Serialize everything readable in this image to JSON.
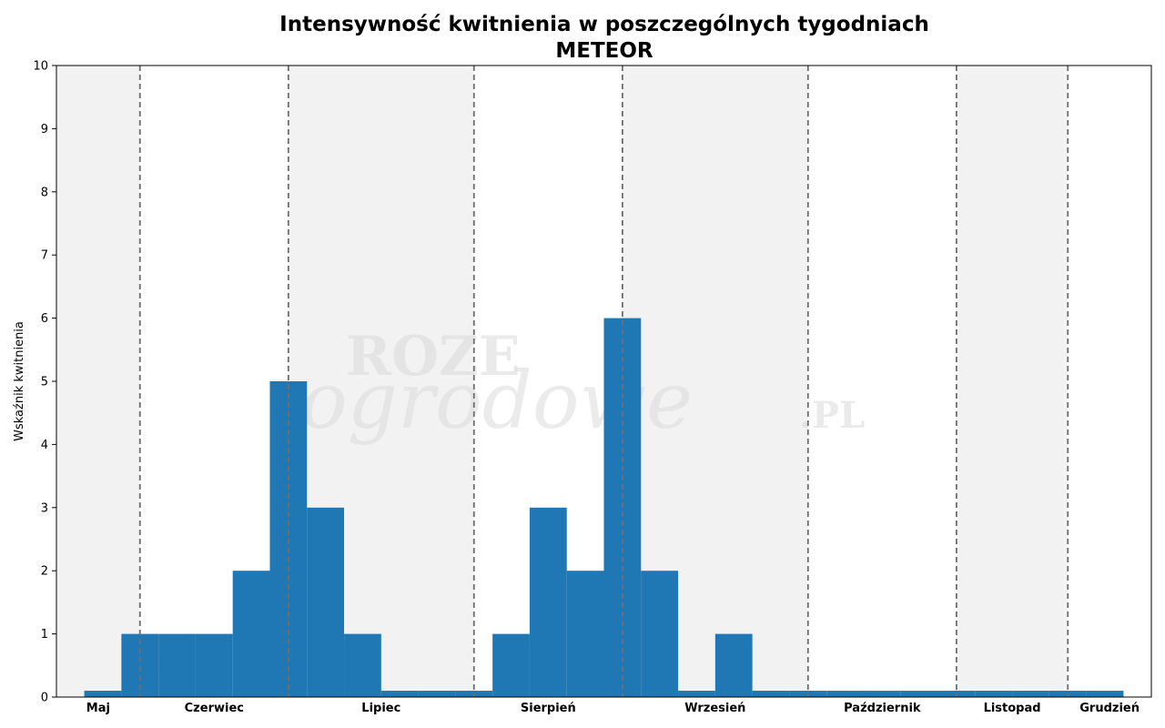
{
  "chart_data": {
    "type": "bar",
    "title": "Intensywność kwitnienia w poszczególnych tygodniach",
    "subtitle": "METEOR",
    "xlabel": "",
    "ylabel": "Wskaźnik kwitnienia",
    "ylim": [
      0,
      10
    ],
    "yticks": [
      "0",
      "1",
      "2",
      "3",
      "4",
      "5",
      "6",
      "7",
      "8",
      "9",
      "10"
    ],
    "xlim": [
      0,
      29.5
    ],
    "bar_width": 1,
    "bars": [
      {
        "x": 1.25,
        "value": 0.1
      },
      {
        "x": 2.25,
        "value": 1
      },
      {
        "x": 3.25,
        "value": 1
      },
      {
        "x": 4.25,
        "value": 1
      },
      {
        "x": 5.25,
        "value": 2
      },
      {
        "x": 6.25,
        "value": 5
      },
      {
        "x": 7.25,
        "value": 3
      },
      {
        "x": 8.25,
        "value": 1
      },
      {
        "x": 9.25,
        "value": 0.1
      },
      {
        "x": 10.25,
        "value": 0.1
      },
      {
        "x": 11.25,
        "value": 0.1
      },
      {
        "x": 12.25,
        "value": 1
      },
      {
        "x": 13.25,
        "value": 3
      },
      {
        "x": 14.25,
        "value": 2
      },
      {
        "x": 15.25,
        "value": 6
      },
      {
        "x": 16.25,
        "value": 2
      },
      {
        "x": 17.25,
        "value": 0.1
      },
      {
        "x": 18.25,
        "value": 1
      },
      {
        "x": 19.25,
        "value": 0.1
      },
      {
        "x": 20.25,
        "value": 0.1
      },
      {
        "x": 21.25,
        "value": 0.1
      },
      {
        "x": 22.25,
        "value": 0.1
      },
      {
        "x": 23.25,
        "value": 0.1
      },
      {
        "x": 24.25,
        "value": 0.1
      },
      {
        "x": 25.25,
        "value": 0.1
      },
      {
        "x": 26.25,
        "value": 0.1
      },
      {
        "x": 27.25,
        "value": 0.1
      },
      {
        "x": 28.25,
        "value": 0.1
      }
    ],
    "months": [
      {
        "name": "Maj",
        "start": 0,
        "end": 2.25,
        "shaded": true
      },
      {
        "name": "Czerwiec",
        "start": 2.25,
        "end": 6.25,
        "shaded": false
      },
      {
        "name": "Lipiec",
        "start": 6.25,
        "end": 11.25,
        "shaded": true
      },
      {
        "name": "Sierpień",
        "start": 11.25,
        "end": 15.25,
        "shaded": false
      },
      {
        "name": "Wrzesień",
        "start": 15.25,
        "end": 20.25,
        "shaded": true
      },
      {
        "name": "Październik",
        "start": 20.25,
        "end": 24.25,
        "shaded": false
      },
      {
        "name": "Listopad",
        "start": 24.25,
        "end": 27.25,
        "shaded": true
      },
      {
        "name": "Grudzień",
        "start": 27.25,
        "end": 29.5,
        "shaded": false
      }
    ],
    "month_boundaries": [
      2.25,
      6.25,
      11.25,
      15.25,
      20.25,
      24.25,
      27.25
    ],
    "grid": false,
    "legend": "none"
  },
  "watermark": [
    "ROZE",
    "ogrodowe",
    ".PL"
  ],
  "colors": {
    "bar": "#1f77b4",
    "shade": "#f2f2f2",
    "boundary": "#6e6e6e",
    "axis": "#000000"
  }
}
